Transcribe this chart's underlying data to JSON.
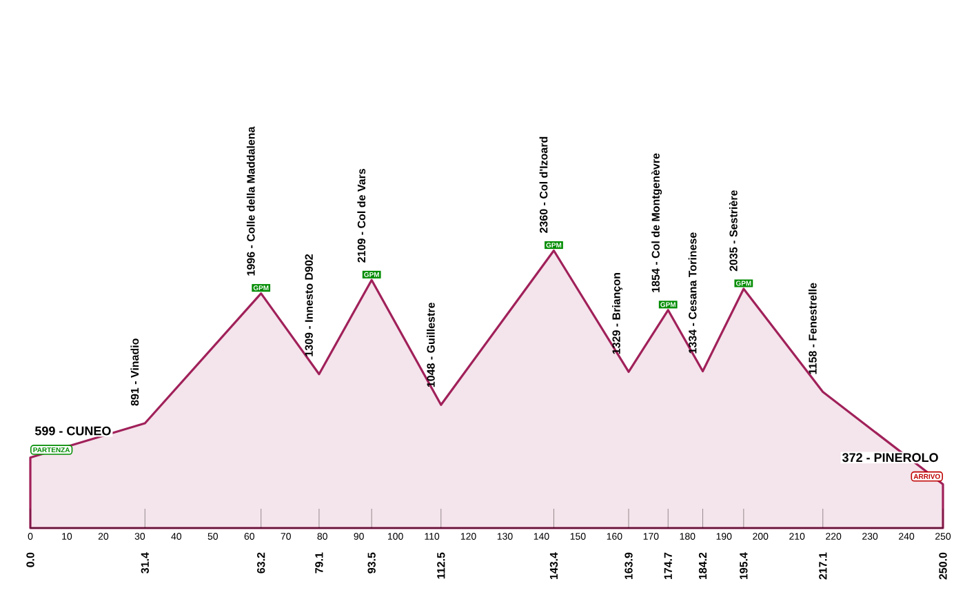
{
  "chart_data": {
    "type": "area",
    "x": [
      0,
      31.4,
      63.2,
      79.1,
      93.5,
      112.5,
      143.4,
      163.9,
      174.7,
      184.2,
      195.4,
      217.1,
      250
    ],
    "values": [
      599,
      891,
      1996,
      1309,
      2109,
      1048,
      2360,
      1329,
      1854,
      1334,
      2035,
      1158,
      372
    ],
    "value_labels": [
      "599 - CUNEO",
      "891 - Vinadio",
      "1996 - Colle della Maddalena",
      "1309 - Innesto D902",
      "2109 - Col de Vars",
      "1048 - Guillestre",
      "2360 - Col d'Izoard",
      "1329 - Briançon",
      "1854 - Col de  Montgenèvre",
      "1334 - Cesana Torinese",
      "2035 - Sestrière",
      "1158 - Fenestrelle",
      "372 - PINEROLO"
    ],
    "color": "#a0215a",
    "xlim": [
      0,
      250
    ],
    "xticks": [
      0,
      10,
      20,
      30,
      40,
      50,
      60,
      70,
      80,
      90,
      100,
      110,
      120,
      130,
      140,
      150,
      160,
      170,
      180,
      190,
      200,
      210,
      220,
      230,
      240,
      250
    ],
    "x2lim": [
      0,
      250
    ],
    "x2ticks": [
      {
        "value": 0,
        "label": "0.0"
      },
      31.4,
      63.2,
      79.1,
      93.5,
      112.5,
      143.4,
      163.9,
      174.7,
      184.2,
      195.4,
      217.1,
      {
        "value": 250,
        "label": "250.0"
      }
    ],
    "annotations": [
      {
        "text": "PARTENZA",
        "x": 0,
        "y": 599
      },
      {
        "text": "GPM",
        "x": 63.2,
        "y": 1996
      },
      {
        "text": "GPM",
        "x": 93.5,
        "y": 2109
      },
      {
        "text": "GPM",
        "x": 143.4,
        "y": 2360
      },
      {
        "text": "GPM",
        "x": 174.7,
        "y": 1854
      },
      {
        "text": "GPM",
        "x": 195.4,
        "y": 2035
      },
      {
        "text": "ARRIVO",
        "x": 250,
        "y": 372
      }
    ]
  }
}
